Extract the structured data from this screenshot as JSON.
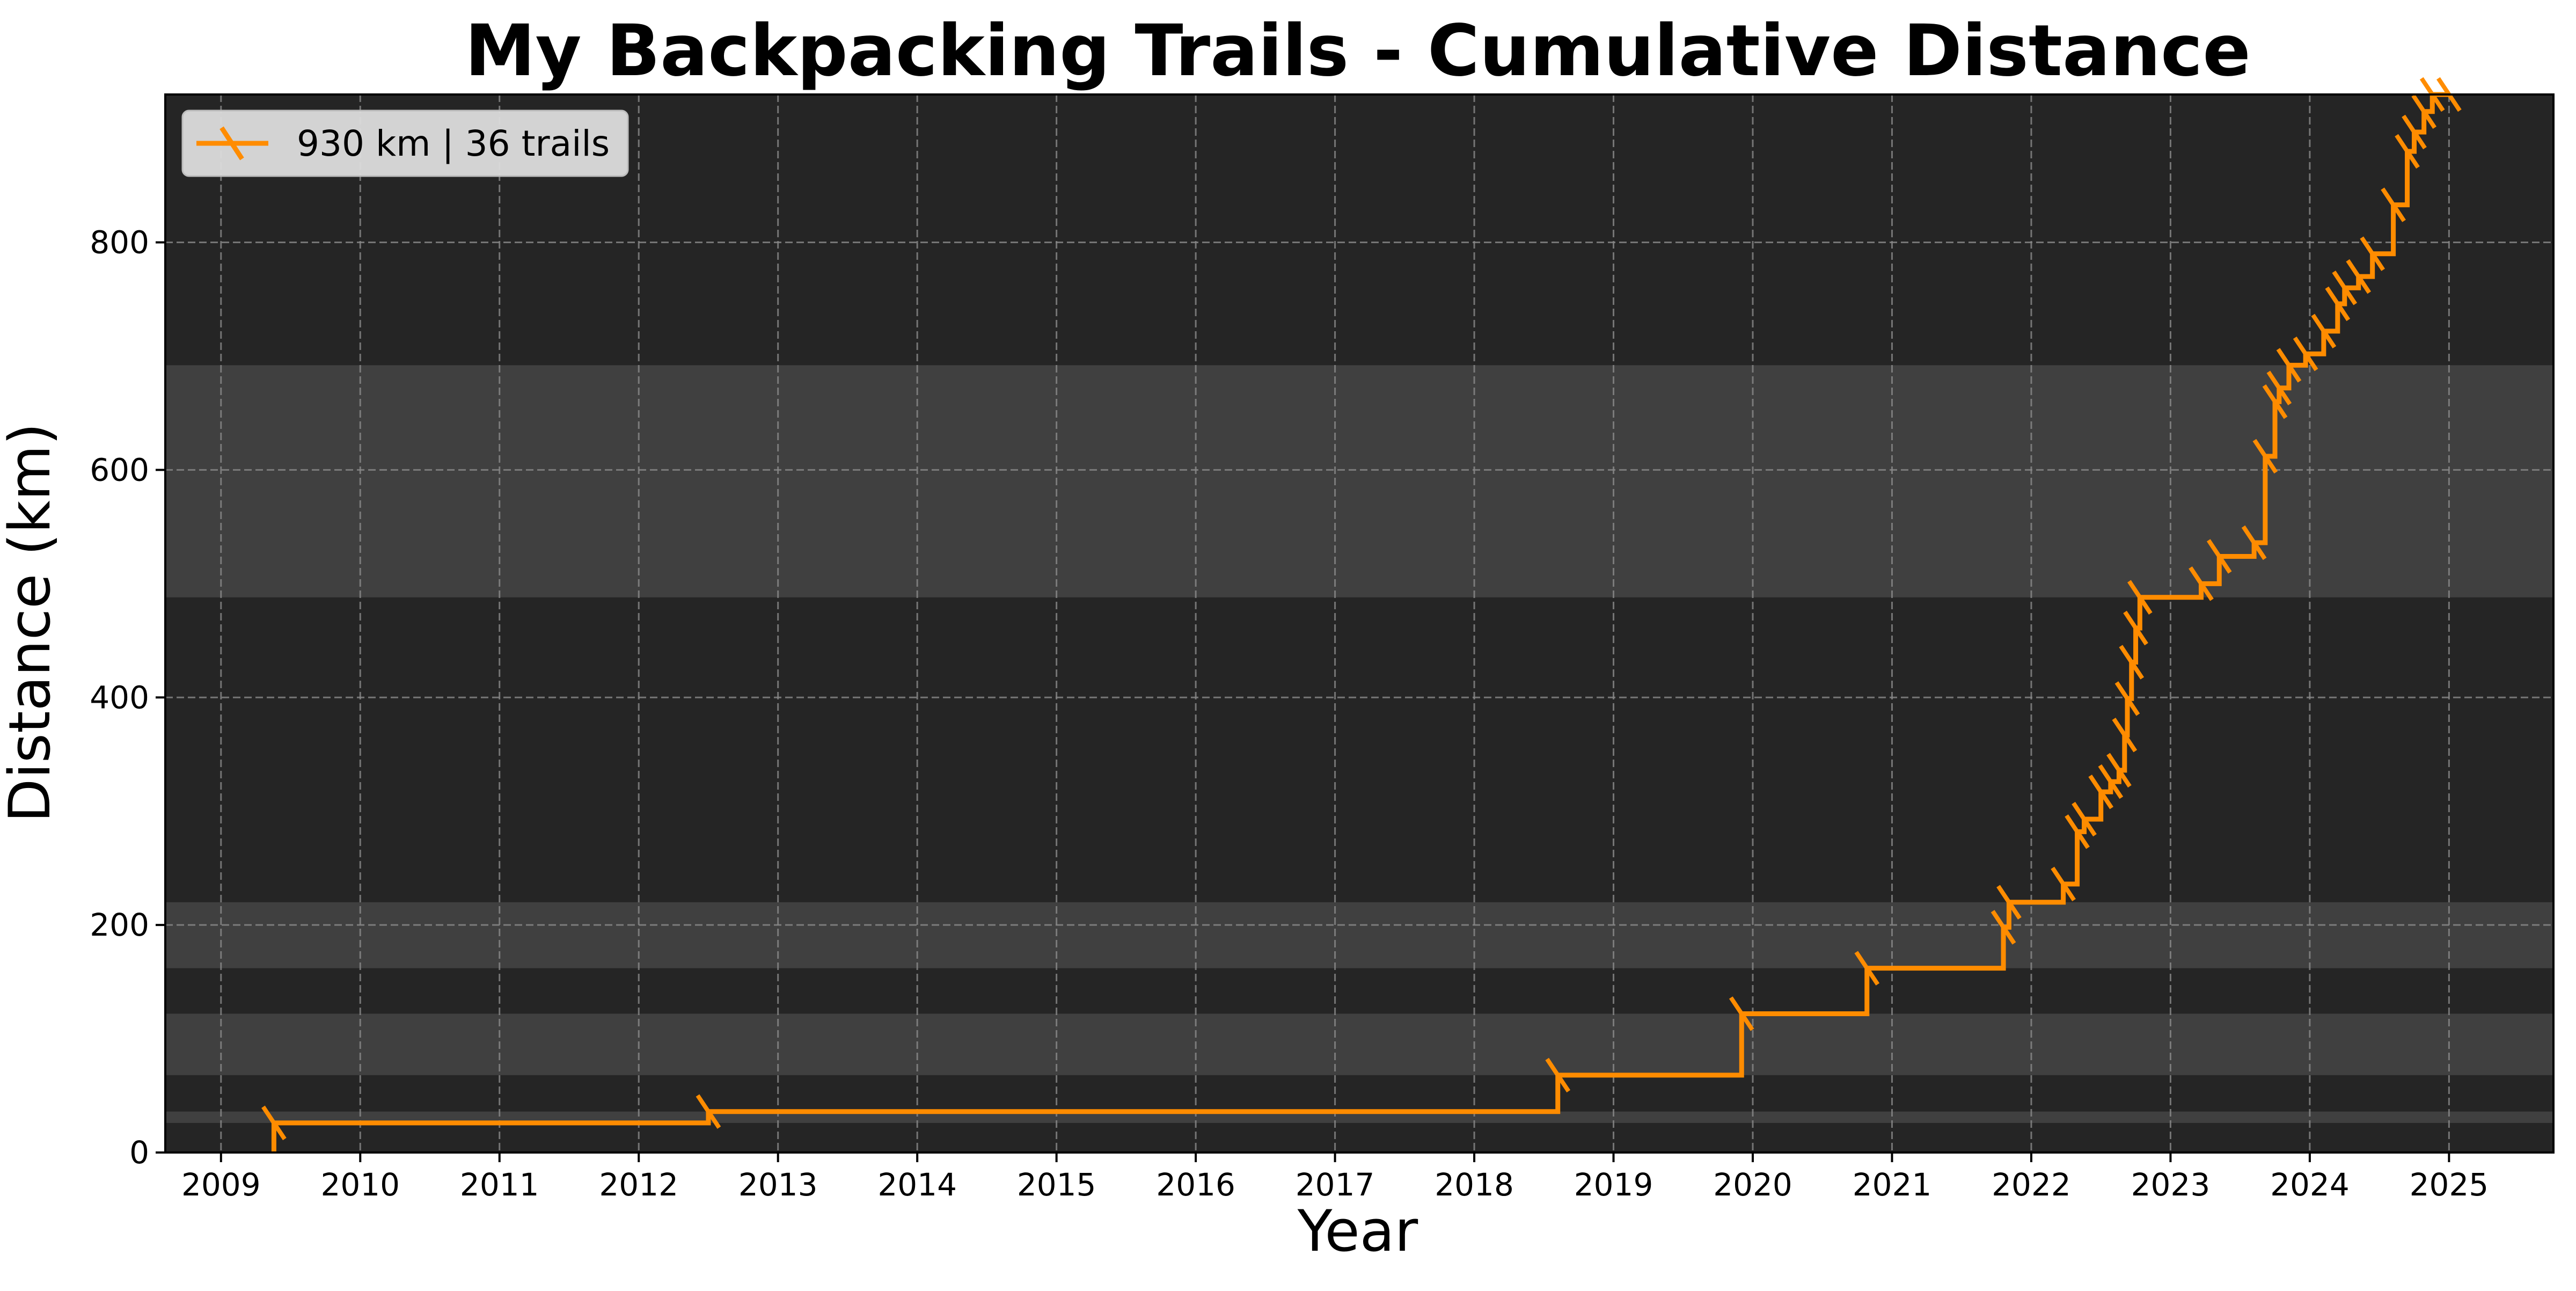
{
  "chart_data": {
    "type": "line",
    "step": true,
    "title": "My Backpacking Trails - Cumulative Distance",
    "xlabel": "Year",
    "ylabel": "Distance (km)",
    "xlim": [
      2008.6,
      2025.75
    ],
    "ylim": [
      0,
      930
    ],
    "x_ticks": [
      2009,
      2010,
      2011,
      2012,
      2013,
      2014,
      2015,
      2016,
      2017,
      2018,
      2019,
      2020,
      2021,
      2022,
      2023,
      2024,
      2025
    ],
    "y_ticks": [
      0,
      200,
      400,
      600,
      800
    ],
    "grid": true,
    "legend_position": "top-left",
    "background_color": "#252525",
    "band_color": "#404040",
    "line_color": "#ff8c00",
    "marker": "x-tick",
    "highlight_bands": [
      [
        26,
        36
      ],
      [
        68,
        122
      ],
      [
        162,
        220
      ],
      [
        488,
        692
      ]
    ],
    "series": [
      {
        "name": "930 km | 36 trails",
        "color": "#ff8c00",
        "x": [
          2009.38,
          2012.5,
          2018.6,
          2019.92,
          2020.82,
          2021.8,
          2021.84,
          2022.23,
          2022.33,
          2022.38,
          2022.5,
          2022.57,
          2022.63,
          2022.67,
          2022.69,
          2022.72,
          2022.75,
          2022.78,
          2023.22,
          2023.35,
          2023.6,
          2023.68,
          2023.75,
          2023.78,
          2023.85,
          2023.97,
          2024.1,
          2024.2,
          2024.25,
          2024.35,
          2024.45,
          2024.6,
          2024.7,
          2024.75,
          2024.82,
          2024.88
        ],
        "y": [
          26,
          36,
          68,
          122,
          162,
          198,
          220,
          236,
          282,
          293,
          317,
          326,
          336,
          367,
          399,
          431,
          461,
          488,
          500,
          524,
          536,
          612,
          660,
          672,
          692,
          702,
          722,
          746,
          760,
          770,
          790,
          833,
          880,
          897,
          915,
          930
        ],
        "final_x": 2025.0
      }
    ]
  }
}
